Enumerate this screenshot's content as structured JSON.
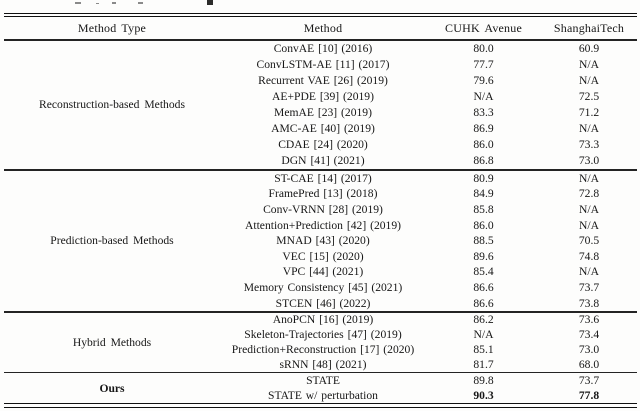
{
  "page": {
    "background_color": "#fdfdfc",
    "text_color": "#161616",
    "rule_color": "#1c1c1c"
  },
  "header": {
    "columns": [
      "Method Type",
      "Method",
      "CUHK Avenue",
      "ShanghaiTech"
    ]
  },
  "sections": [
    {
      "type": "Reconstruction-based Methods",
      "type_bold": false,
      "rows": [
        {
          "method": "ConvAE [10] (2016)",
          "cuhk": "80.0",
          "shtech": "60.9"
        },
        {
          "method": "ConvLSTM-AE [11] (2017)",
          "cuhk": "77.7",
          "shtech": "N/A"
        },
        {
          "method": "Recurrent VAE [26] (2019)",
          "cuhk": "79.6",
          "shtech": "N/A"
        },
        {
          "method": "AE+PDE [39] (2019)",
          "cuhk": "N/A",
          "shtech": "72.5"
        },
        {
          "method": "MemAE [23] (2019)",
          "cuhk": "83.3",
          "shtech": "71.2"
        },
        {
          "method": "AMC-AE [40] (2019)",
          "cuhk": "86.9",
          "shtech": "N/A"
        },
        {
          "method": "CDAE [24] (2020)",
          "cuhk": "86.0",
          "shtech": "73.3"
        },
        {
          "method": "DGN [41] (2021)",
          "cuhk": "86.8",
          "shtech": "73.0"
        }
      ]
    },
    {
      "type": "Prediction-based Methods",
      "type_bold": false,
      "rows": [
        {
          "method": "ST-CAE [14] (2017)",
          "cuhk": "80.9",
          "shtech": "N/A"
        },
        {
          "method": "FramePred [13] (2018)",
          "cuhk": "84.9",
          "shtech": "72.8"
        },
        {
          "method": "Conv-VRNN [28] (2019)",
          "cuhk": "85.8",
          "shtech": "N/A"
        },
        {
          "method": "Attention+Prediction [42] (2019)",
          "cuhk": "86.0",
          "shtech": "N/A"
        },
        {
          "method": "MNAD [43] (2020)",
          "cuhk": "88.5",
          "shtech": "70.5"
        },
        {
          "method": "VEC [15] (2020)",
          "cuhk": "89.6",
          "shtech": "74.8"
        },
        {
          "method": "VPC [44] (2021)",
          "cuhk": "85.4",
          "shtech": "N/A"
        },
        {
          "method": "Memory Consistency [45] (2021)",
          "cuhk": "86.6",
          "shtech": "73.7"
        },
        {
          "method": "STCEN [46] (2022)",
          "cuhk": "86.6",
          "shtech": "73.8"
        }
      ]
    },
    {
      "type": "Hybrid Methods",
      "type_bold": false,
      "rows": [
        {
          "method": "AnoPCN [16] (2019)",
          "cuhk": "86.2",
          "shtech": "73.6"
        },
        {
          "method": "Skeleton-Trajectories [47] (2019)",
          "cuhk": "N/A",
          "shtech": "73.4"
        },
        {
          "method": "Prediction+Reconstruction [17] (2020)",
          "cuhk": "85.1",
          "shtech": "73.0"
        },
        {
          "method": "sRNN [48] (2021)",
          "cuhk": "81.7",
          "shtech": "68.0"
        }
      ]
    },
    {
      "type": "Ours",
      "type_bold": true,
      "rows": [
        {
          "method": "STATE",
          "cuhk": "89.8",
          "shtech": "73.7"
        },
        {
          "method": "STATE w/ perturbation",
          "cuhk": "90.3",
          "shtech": "77.8",
          "values_bold": true
        }
      ]
    }
  ]
}
